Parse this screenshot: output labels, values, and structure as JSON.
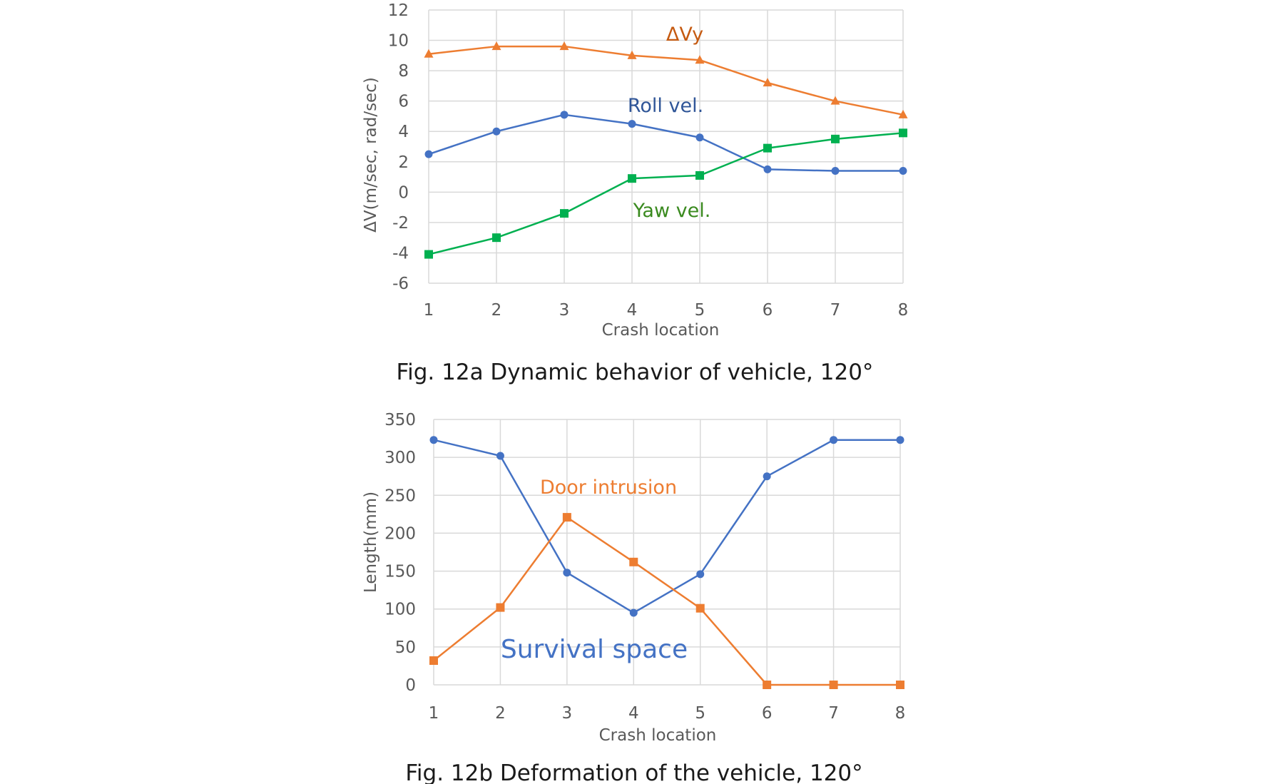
{
  "chart_data": [
    {
      "type": "line",
      "caption": "Fig. 12a Dynamic behavior of vehicle, 120°",
      "xlabel": "Crash location",
      "ylabel": "ΔV(m/sec, rad/sec)",
      "x": [
        1,
        2,
        3,
        4,
        5,
        6,
        7,
        8
      ],
      "xtick_labels": [
        "1",
        "2",
        "3",
        "4",
        "5",
        "6",
        "7",
        "8"
      ],
      "ylim": [
        -6,
        12
      ],
      "ytick_labels": [
        "12",
        "10",
        "8",
        "6",
        "4",
        "2",
        "0",
        "-2",
        "-4",
        "-6"
      ],
      "grid": true,
      "series": [
        {
          "name": "ΔVy",
          "color": "#ED7D31",
          "marker": "triangle",
          "values": [
            9.1,
            9.6,
            9.6,
            9.0,
            8.7,
            7.2,
            6.0,
            5.1
          ]
        },
        {
          "name": "Roll vel.",
          "color": "#4472C4",
          "marker": "circle",
          "values": [
            2.5,
            4.0,
            5.1,
            4.5,
            3.6,
            1.5,
            1.4,
            1.4
          ]
        },
        {
          "name": "Yaw vel.",
          "color": "#00B050",
          "marker": "square",
          "values": [
            -4.1,
            -3.0,
            -1.4,
            0.9,
            1.1,
            2.9,
            3.5,
            3.9
          ]
        }
      ],
      "annotations": [
        {
          "text": "ΔVy",
          "color": "#C55A11"
        },
        {
          "text": "Roll vel.",
          "color": "#2F5597"
        },
        {
          "text": "Yaw vel.",
          "color": "#3A8A1F"
        }
      ]
    },
    {
      "type": "line",
      "caption": "Fig. 12b Deformation of the vehicle, 120°",
      "xlabel": "Crash location",
      "ylabel": "Length(mm)",
      "x": [
        1,
        2,
        3,
        4,
        5,
        6,
        7,
        8
      ],
      "xtick_labels": [
        "1",
        "2",
        "3",
        "4",
        "5",
        "6",
        "7",
        "8"
      ],
      "ylim": [
        0,
        350
      ],
      "ytick_labels": [
        "350",
        "300",
        "250",
        "200",
        "150",
        "100",
        "50",
        "0"
      ],
      "grid": true,
      "series": [
        {
          "name": "Survival space",
          "color": "#4472C4",
          "marker": "circle",
          "values": [
            323,
            302,
            148,
            95,
            146,
            275,
            323,
            323
          ]
        },
        {
          "name": "Door intrusion",
          "color": "#ED7D31",
          "marker": "square",
          "values": [
            32,
            102,
            221,
            162,
            101,
            0,
            0,
            0
          ]
        }
      ],
      "annotations": [
        {
          "text": "Door intrusion",
          "color": "#ED7D31"
        },
        {
          "text": "Survival space",
          "color": "#4472C4"
        }
      ]
    }
  ]
}
